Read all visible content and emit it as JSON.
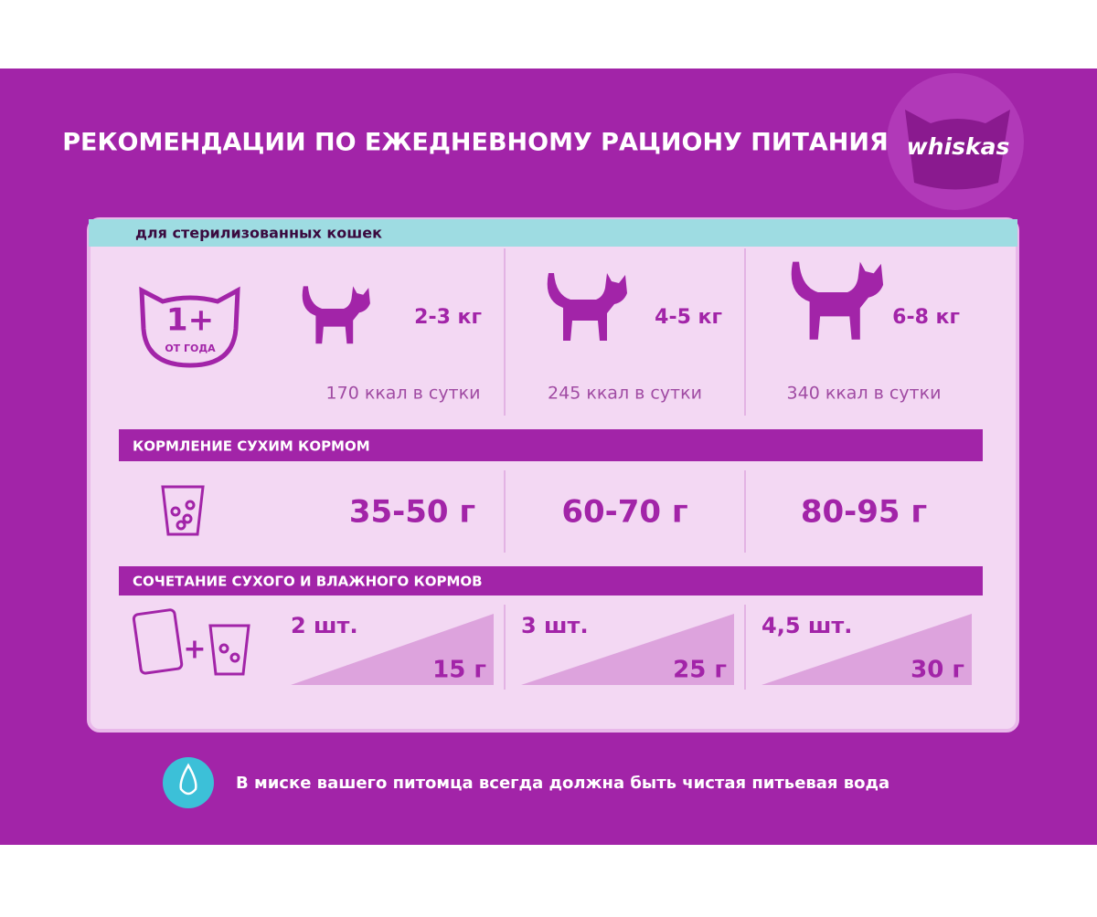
{
  "header": {
    "title": "РЕКОМЕНДАЦИИ ПО ЕЖЕДНЕВНОМУ РАЦИОНУ ПИТАНИЯ",
    "logo": "whiskas"
  },
  "panel": {
    "tag": "для стерилизованных кошек",
    "age": "1+",
    "age_note": "ОТ ГОДА",
    "columns": [
      {
        "weight": "2-3 кг",
        "kcal": "170 ккал в сутки"
      },
      {
        "weight": "4-5 кг",
        "kcal": "245 ккал в сутки"
      },
      {
        "weight": "6-8 кг",
        "kcal": "340 ккал в сутки"
      }
    ],
    "dry": {
      "title": "КОРМЛЕНИЕ СУХИМ КОРМОМ",
      "amounts": [
        "35-50 г",
        "60-70 г",
        "80-95 г"
      ]
    },
    "combo": {
      "title": "СОЧЕТАНИЕ СУХОГО И ВЛАЖНОГО КОРМОВ",
      "plus": "+",
      "pouches": [
        "2 шт.",
        "3 шт.",
        "4,5 шт."
      ],
      "grams": [
        "15 г",
        "25 г",
        "30 г"
      ]
    }
  },
  "footer": {
    "note": "В миске вашего питомца всегда должна быть чистая питьевая вода"
  }
}
